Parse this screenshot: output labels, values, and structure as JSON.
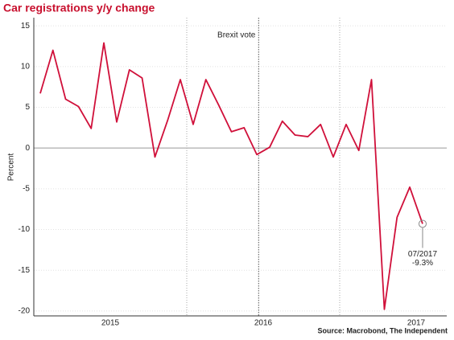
{
  "chart_data": {
    "type": "line",
    "title": "Car registrations y/y change",
    "ylabel": "Percent",
    "source": "Source: Macrobond, The Independent",
    "x": [
      2015.042,
      2015.125,
      2015.208,
      2015.292,
      2015.375,
      2015.458,
      2015.542,
      2015.625,
      2015.708,
      2015.792,
      2015.875,
      2015.958,
      2016.042,
      2016.125,
      2016.208,
      2016.292,
      2016.375,
      2016.458,
      2016.542,
      2016.625,
      2016.708,
      2016.792,
      2016.875,
      2016.958,
      2017.042,
      2017.125,
      2017.208,
      2017.292,
      2017.375,
      2017.458,
      2017.542
    ],
    "series": [
      {
        "color": "#d0103a",
        "values": [
          6.7,
          12,
          6,
          5.1,
          2.4,
          12.9,
          3.2,
          9.6,
          8.6,
          -1.1,
          3.4,
          8.4,
          2.9,
          8.4,
          5.3,
          2,
          2.5,
          -0.8,
          0.1,
          3.3,
          1.6,
          1.4,
          2.9,
          -1.1,
          2.9,
          -0.3,
          8.4,
          -19.8,
          -8.5,
          -4.8,
          -9.3
        ]
      }
    ],
    "xlim": [
      2015,
      2017.7
    ],
    "xticks": [
      {
        "value": 2015.5,
        "label": "2015"
      },
      {
        "value": 2016.5,
        "label": "2016"
      },
      {
        "value": 2017.5,
        "label": "2017"
      }
    ],
    "xminorticks": [
      2016,
      2017
    ],
    "ylim": [
      -20.6,
      16
    ],
    "yticks": [
      -20,
      -15,
      -10,
      -5,
      0,
      5,
      10,
      15
    ],
    "grid": true,
    "event": {
      "x": 2016.47,
      "label": "Brexit vote"
    },
    "callout": {
      "date": "07/2017",
      "value_label": "-9.3%"
    }
  }
}
